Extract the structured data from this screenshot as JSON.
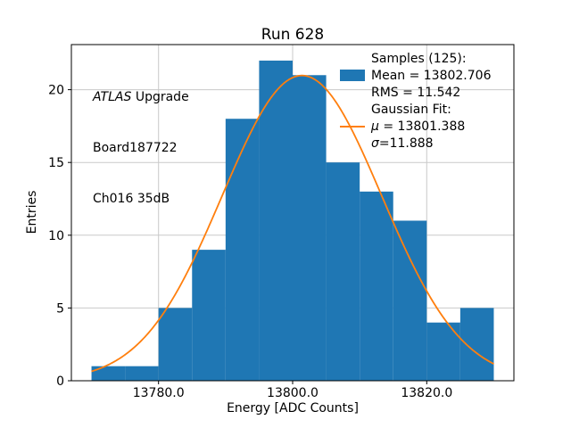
{
  "chart_data": {
    "type": "bar",
    "subtype": "histogram",
    "title": "Run 628",
    "xlabel": "Energy [ADC Counts]",
    "ylabel": "Entries",
    "xlim": [
      13767,
      13833
    ],
    "ylim": [
      0,
      23.1
    ],
    "grid": true,
    "legend_position": "upper right",
    "bin_edges": [
      13770,
      13775,
      13780,
      13785,
      13790,
      13795,
      13800,
      13805,
      13810,
      13815,
      13820,
      13825,
      13830
    ],
    "counts": [
      1,
      1,
      5,
      9,
      18,
      22,
      21,
      15,
      13,
      11,
      4,
      5
    ],
    "xticks": [
      13780,
      13800,
      13820
    ],
    "xtick_labels": [
      "13780.0",
      "13800.0",
      "13820.0"
    ],
    "yticks": [
      0,
      5,
      10,
      15,
      20
    ],
    "ytick_labels": [
      "0",
      "5",
      "10",
      "15",
      "20"
    ],
    "colors": {
      "bar": "#1f77b4",
      "fit_line": "#ff7f0e",
      "grid": "#c9c9c9",
      "axes": "#000000"
    },
    "samples": {
      "n": 125,
      "mean": 13802.706,
      "rms": 11.542
    },
    "gaussian_fit": {
      "mu": 13801.388,
      "sigma": 11.888,
      "n_samples": 125,
      "x_range": [
        13770,
        13830
      ]
    }
  },
  "annotation": {
    "line1_italic": "ATLAS",
    "line1_rest": " Upgrade",
    "line2": "Board187722",
    "line3": "Ch016 35dB"
  },
  "legend": {
    "samples_header": "Samples (125):",
    "mean_label": "Mean = 13802.706",
    "rms_label": "RMS = 11.542",
    "fit_header": "Gaussian Fit:",
    "mu_symbol": "μ",
    "mu_rest": " = 13801.388",
    "sigma_symbol": "σ",
    "sigma_rest": "=11.888"
  }
}
